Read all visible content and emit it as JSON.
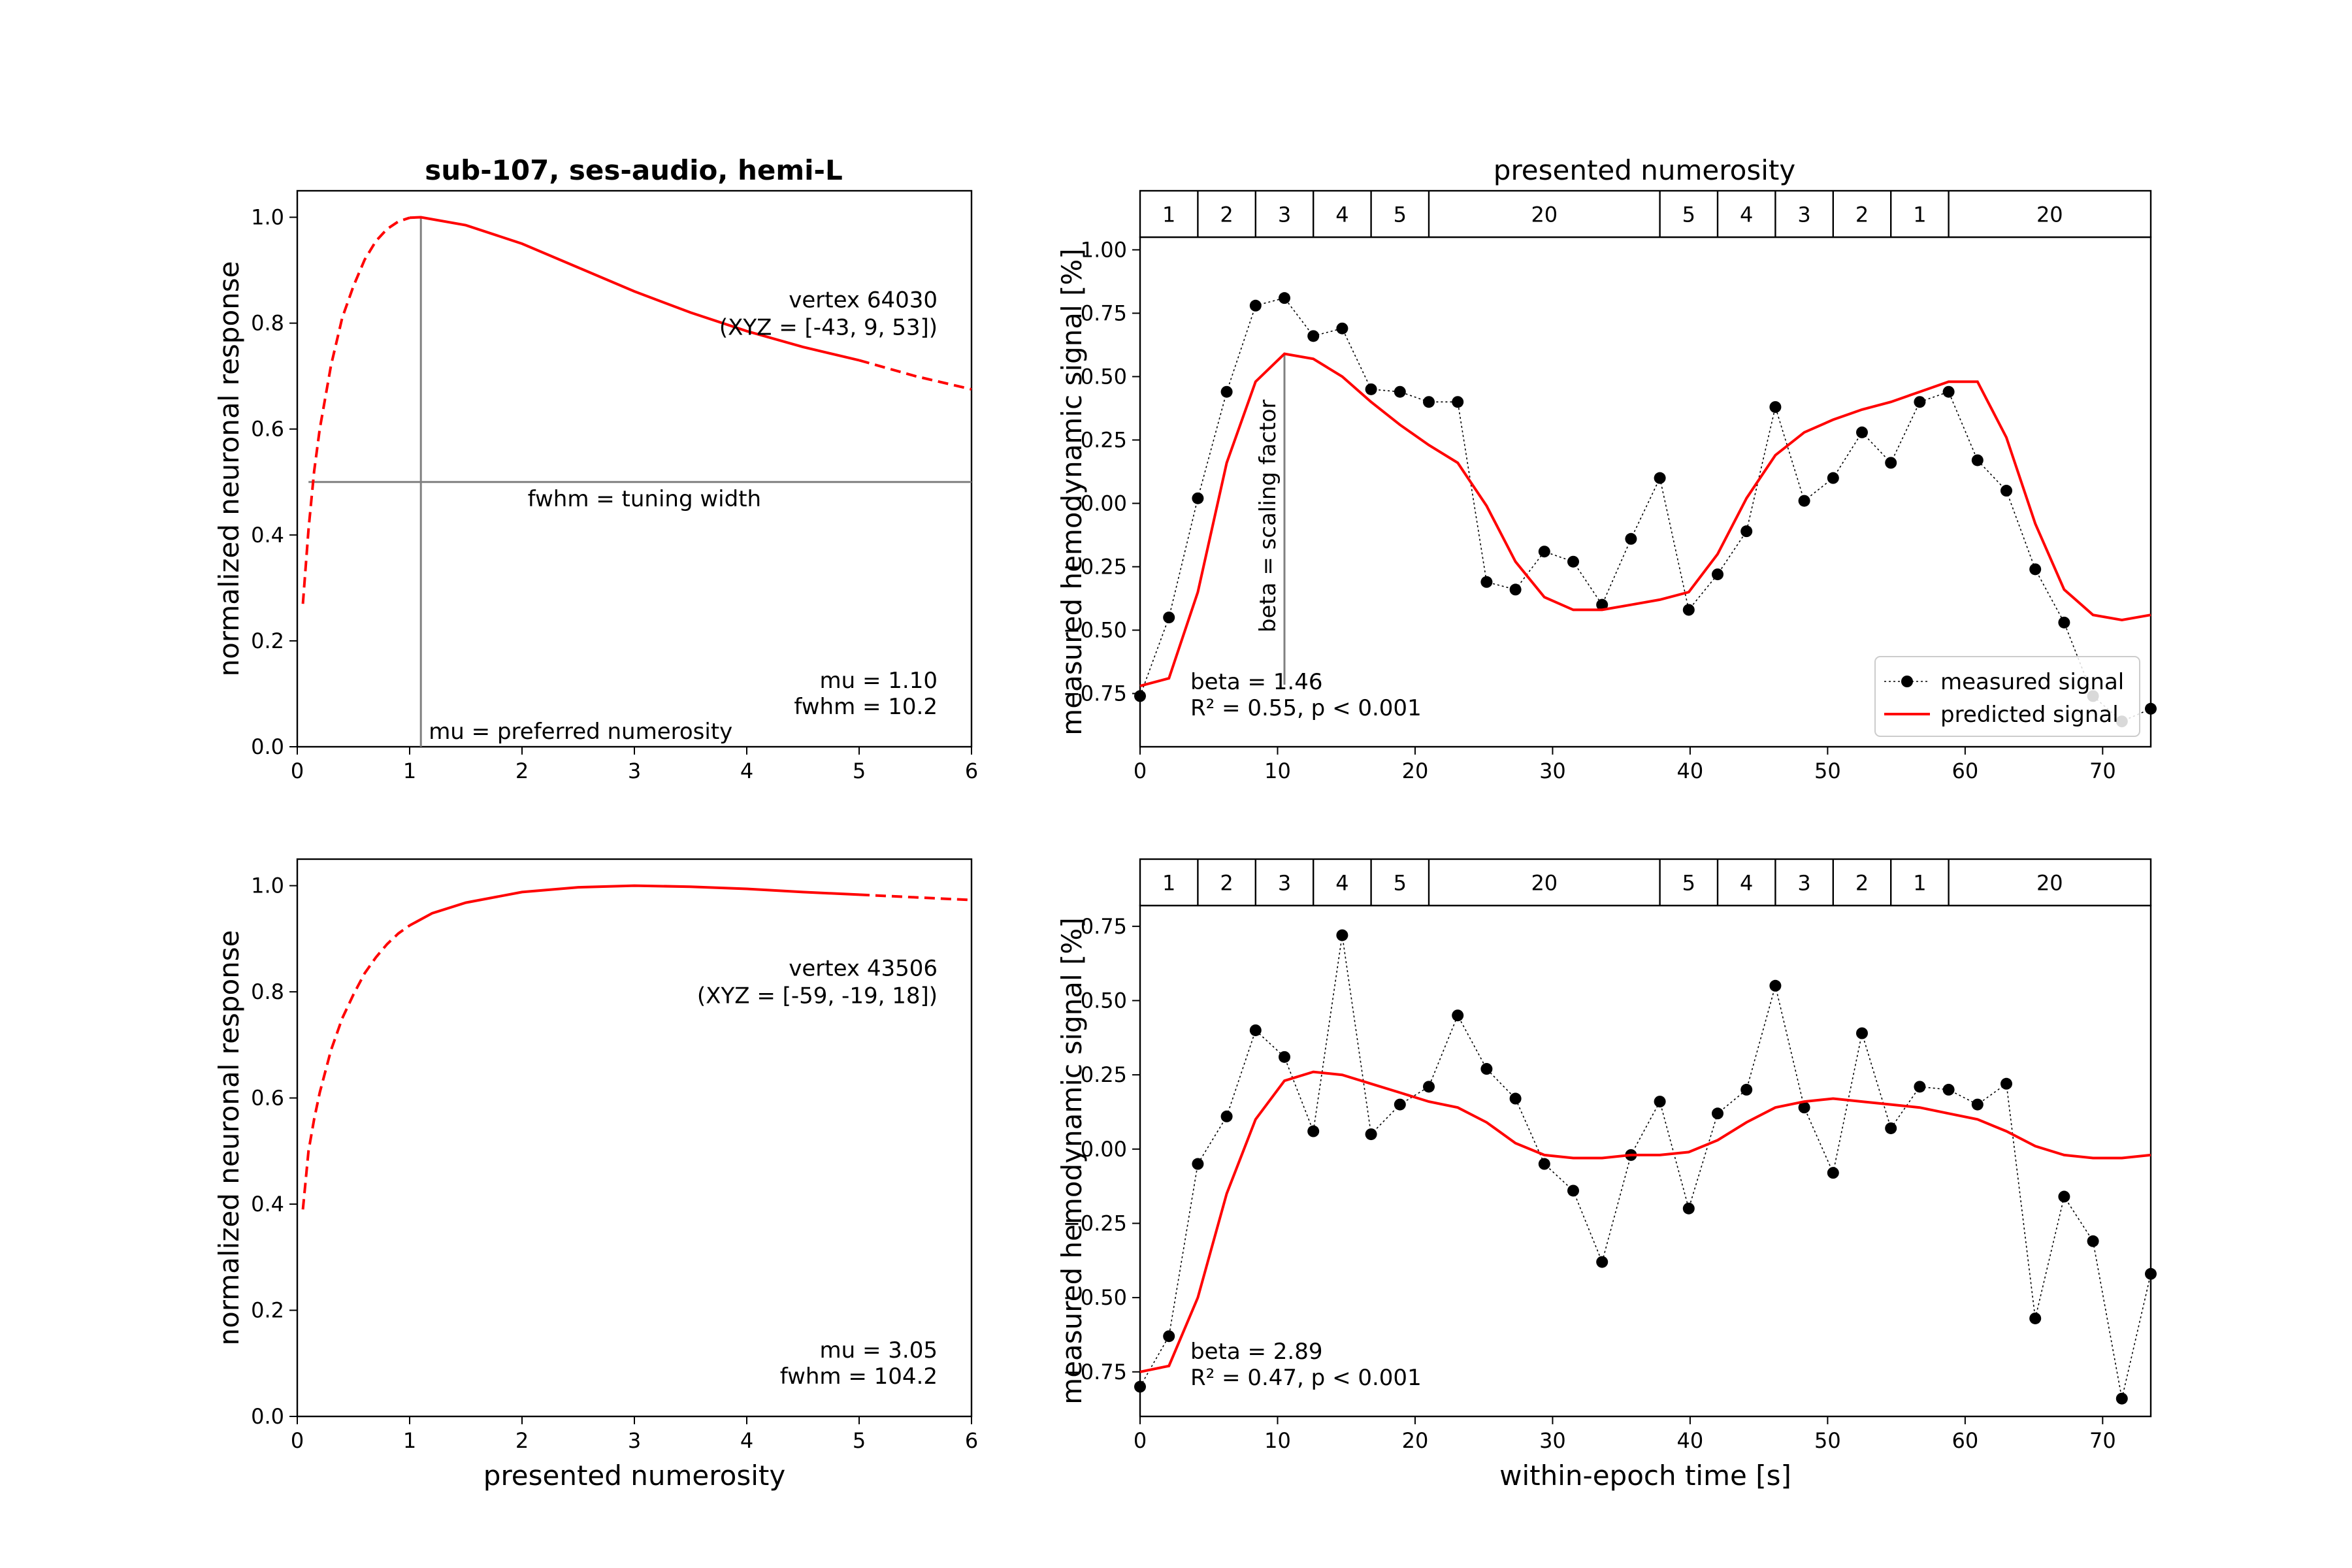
{
  "figure": {
    "title": "sub-107, ses-audio, hemi-L",
    "top_right_title": "presented numerosity"
  },
  "colors": {
    "model": "#ff0000",
    "measured": "#000000",
    "guide": "#808080",
    "axes": "#000000"
  },
  "chart_data": [
    {
      "id": "tuning_top",
      "type": "line",
      "xlabel": "",
      "ylabel": "normalized neuronal response",
      "xlim": [
        0,
        6
      ],
      "ylim": [
        0,
        1.05
      ],
      "xticks": [
        "0",
        "1",
        "2",
        "3",
        "4",
        "5",
        "6"
      ],
      "yticks": [
        "0.0",
        "0.2",
        "0.4",
        "0.6",
        "0.8",
        "1.0"
      ],
      "grid": false,
      "mu": 1.1,
      "fwhm": 10.2,
      "solid_range": [
        1,
        5
      ],
      "x": [
        0.05,
        0.1,
        0.15,
        0.2,
        0.3,
        0.4,
        0.5,
        0.6,
        0.7,
        0.8,
        0.9,
        1.0,
        1.1,
        1.5,
        2.0,
        2.5,
        3.0,
        3.5,
        4.0,
        4.5,
        5.0,
        5.5,
        6.0
      ],
      "y": [
        0.27,
        0.41,
        0.52,
        0.6,
        0.72,
        0.81,
        0.87,
        0.92,
        0.955,
        0.978,
        0.992,
        0.999,
        1.0,
        0.985,
        0.95,
        0.905,
        0.86,
        0.82,
        0.785,
        0.755,
        0.73,
        0.7,
        0.675
      ],
      "vline_label": "mu = preferred numerosity",
      "hline_label": "fwhm = tuning width",
      "vertex_label": "vertex 64030",
      "xyz_label": "(XYZ = [-43, 9, 53])",
      "mu_label": "mu = 1.10",
      "fwhm_label": "fwhm = 10.2"
    },
    {
      "id": "timecourse_top",
      "type": "line",
      "xlabel": "",
      "ylabel": "measured hemodynamic signal [%]",
      "xlim": [
        0,
        73.5
      ],
      "ylim": [
        -0.96,
        1.05
      ],
      "xticks": [
        "0",
        "10",
        "20",
        "30",
        "40",
        "50",
        "60",
        "70"
      ],
      "yticks": [
        "−0.75",
        "−0.50",
        "−0.25",
        "0.00",
        "0.25",
        "0.50",
        "0.75",
        "1.00"
      ],
      "grid": false,
      "stimulus_blocks": [
        {
          "label": "1",
          "start": 0,
          "end": 4.2
        },
        {
          "label": "2",
          "start": 4.2,
          "end": 8.4
        },
        {
          "label": "3",
          "start": 8.4,
          "end": 12.6
        },
        {
          "label": "4",
          "start": 12.6,
          "end": 16.8
        },
        {
          "label": "5",
          "start": 16.8,
          "end": 21.0
        },
        {
          "label": "20",
          "start": 21.0,
          "end": 37.8
        },
        {
          "label": "5",
          "start": 37.8,
          "end": 42.0
        },
        {
          "label": "4",
          "start": 42.0,
          "end": 46.2
        },
        {
          "label": "3",
          "start": 46.2,
          "end": 50.4
        },
        {
          "label": "2",
          "start": 50.4,
          "end": 54.6
        },
        {
          "label": "1",
          "start": 54.6,
          "end": 58.8
        },
        {
          "label": "20",
          "start": 58.8,
          "end": 73.5
        }
      ],
      "series": [
        {
          "name": "measured signal",
          "x": [
            0,
            2.1,
            4.2,
            6.3,
            8.4,
            10.5,
            12.6,
            14.7,
            16.8,
            18.9,
            21.0,
            23.1,
            25.2,
            27.3,
            29.4,
            31.5,
            33.6,
            35.7,
            37.8,
            39.9,
            42.0,
            44.1,
            46.2,
            48.3,
            50.4,
            52.5,
            54.6,
            56.7,
            58.8,
            60.9,
            63.0,
            65.1,
            67.2,
            69.3,
            71.4,
            73.5
          ],
          "y": [
            -0.76,
            -0.45,
            0.02,
            0.44,
            0.78,
            0.81,
            0.66,
            0.69,
            0.45,
            0.44,
            0.4,
            0.4,
            -0.31,
            -0.34,
            -0.19,
            -0.23,
            -0.4,
            -0.14,
            0.1,
            -0.42,
            -0.28,
            -0.11,
            0.38,
            0.01,
            0.1,
            0.28,
            0.16,
            0.4,
            0.44,
            0.17,
            0.05,
            -0.26,
            -0.47,
            -0.76,
            -0.86,
            -0.81
          ]
        },
        {
          "name": "predicted signal",
          "x": [
            0,
            2.1,
            4.2,
            6.3,
            8.4,
            10.5,
            12.6,
            14.7,
            16.8,
            18.9,
            21.0,
            23.1,
            25.2,
            27.3,
            29.4,
            31.5,
            33.6,
            35.7,
            37.8,
            39.9,
            42.0,
            44.1,
            46.2,
            48.3,
            50.4,
            52.5,
            54.6,
            56.7,
            58.8,
            60.9,
            63.0,
            65.1,
            67.2,
            69.3,
            71.4,
            73.5
          ],
          "y": [
            -0.72,
            -0.69,
            -0.35,
            0.16,
            0.48,
            0.59,
            0.57,
            0.5,
            0.4,
            0.31,
            0.23,
            0.16,
            -0.01,
            -0.23,
            -0.37,
            -0.42,
            -0.42,
            -0.4,
            -0.38,
            -0.35,
            -0.2,
            0.02,
            0.19,
            0.28,
            0.33,
            0.37,
            0.4,
            0.44,
            0.48,
            0.48,
            0.26,
            -0.08,
            -0.34,
            -0.44,
            -0.46,
            -0.44
          ]
        }
      ],
      "beta_guide_x": 10.5,
      "beta_guide_label": "beta = scaling factor",
      "beta_label": "beta = 1.46",
      "fit_label": "R² = 0.55, p < 0.001",
      "legend_position": "lower-right"
    },
    {
      "id": "tuning_bottom",
      "type": "line",
      "xlabel": "presented numerosity",
      "ylabel": "normalized neuronal response",
      "xlim": [
        0,
        6
      ],
      "ylim": [
        0,
        1.05
      ],
      "xticks": [
        "0",
        "1",
        "2",
        "3",
        "4",
        "5",
        "6"
      ],
      "yticks": [
        "0.0",
        "0.2",
        "0.4",
        "0.6",
        "0.8",
        "1.0"
      ],
      "grid": false,
      "mu": 3.05,
      "fwhm": 104.2,
      "solid_range": [
        1,
        5
      ],
      "x": [
        0.05,
        0.1,
        0.15,
        0.2,
        0.3,
        0.4,
        0.5,
        0.6,
        0.7,
        0.8,
        0.9,
        1.0,
        1.2,
        1.5,
        2.0,
        2.5,
        3.0,
        3.5,
        4.0,
        4.5,
        5.0,
        5.5,
        6.0
      ],
      "y": [
        0.39,
        0.5,
        0.56,
        0.61,
        0.69,
        0.75,
        0.795,
        0.835,
        0.865,
        0.89,
        0.91,
        0.925,
        0.948,
        0.968,
        0.988,
        0.997,
        1.0,
        0.998,
        0.994,
        0.988,
        0.983,
        0.978,
        0.973
      ],
      "vertex_label": "vertex 43506",
      "xyz_label": "(XYZ = [-59, -19, 18])",
      "mu_label": "mu = 3.05",
      "fwhm_label": "fwhm = 104.2"
    },
    {
      "id": "timecourse_bottom",
      "type": "line",
      "xlabel": "within-epoch time [s]",
      "ylabel": "measured hemodynamic signal [%]",
      "xlim": [
        0,
        73.5
      ],
      "ylim": [
        -0.9,
        0.82
      ],
      "xticks": [
        "0",
        "10",
        "20",
        "30",
        "40",
        "50",
        "60",
        "70"
      ],
      "yticks": [
        "−0.75",
        "−0.50",
        "−0.25",
        "0.00",
        "0.25",
        "0.50",
        "0.75"
      ],
      "grid": false,
      "stimulus_blocks": [
        {
          "label": "1",
          "start": 0,
          "end": 4.2
        },
        {
          "label": "2",
          "start": 4.2,
          "end": 8.4
        },
        {
          "label": "3",
          "start": 8.4,
          "end": 12.6
        },
        {
          "label": "4",
          "start": 12.6,
          "end": 16.8
        },
        {
          "label": "5",
          "start": 16.8,
          "end": 21.0
        },
        {
          "label": "20",
          "start": 21.0,
          "end": 37.8
        },
        {
          "label": "5",
          "start": 37.8,
          "end": 42.0
        },
        {
          "label": "4",
          "start": 42.0,
          "end": 46.2
        },
        {
          "label": "3",
          "start": 46.2,
          "end": 50.4
        },
        {
          "label": "2",
          "start": 50.4,
          "end": 54.6
        },
        {
          "label": "1",
          "start": 54.6,
          "end": 58.8
        },
        {
          "label": "20",
          "start": 58.8,
          "end": 73.5
        }
      ],
      "series": [
        {
          "name": "",
          "x": [
            0,
            2.1,
            4.2,
            6.3,
            8.4,
            10.5,
            12.6,
            14.7,
            16.8,
            18.9,
            21.0,
            23.1,
            25.2,
            27.3,
            29.4,
            31.5,
            33.6,
            35.7,
            37.8,
            39.9,
            42.0,
            44.1,
            46.2,
            48.3,
            50.4,
            52.5,
            54.6,
            56.7,
            58.8,
            60.9,
            63.0,
            65.1,
            67.2,
            69.3,
            71.4,
            73.5
          ],
          "y": [
            -0.8,
            -0.63,
            -0.05,
            0.11,
            0.4,
            0.31,
            0.06,
            0.72,
            0.05,
            0.15,
            0.21,
            0.45,
            0.27,
            0.17,
            -0.05,
            -0.14,
            -0.38,
            -0.02,
            0.16,
            -0.2,
            0.12,
            0.2,
            0.55,
            0.14,
            -0.08,
            0.39,
            0.07,
            0.21,
            0.2,
            0.15,
            0.22,
            -0.57,
            -0.16,
            -0.31,
            -0.84,
            -0.42
          ]
        },
        {
          "name": "",
          "x": [
            0,
            2.1,
            4.2,
            6.3,
            8.4,
            10.5,
            12.6,
            14.7,
            16.8,
            18.9,
            21.0,
            23.1,
            25.2,
            27.3,
            29.4,
            31.5,
            33.6,
            35.7,
            37.8,
            39.9,
            42.0,
            44.1,
            46.2,
            48.3,
            50.4,
            52.5,
            54.6,
            56.7,
            58.8,
            60.9,
            63.0,
            65.1,
            67.2,
            69.3,
            71.4,
            73.5
          ],
          "y": [
            -0.75,
            -0.73,
            -0.5,
            -0.15,
            0.1,
            0.23,
            0.26,
            0.25,
            0.22,
            0.19,
            0.16,
            0.14,
            0.09,
            0.02,
            -0.02,
            -0.03,
            -0.03,
            -0.02,
            -0.02,
            -0.01,
            0.03,
            0.09,
            0.14,
            0.16,
            0.17,
            0.16,
            0.15,
            0.14,
            0.12,
            0.1,
            0.06,
            0.01,
            -0.02,
            -0.03,
            -0.03,
            -0.02
          ]
        }
      ],
      "beta_label": "beta = 2.89",
      "fit_label": "R² = 0.47, p < 0.001"
    }
  ]
}
